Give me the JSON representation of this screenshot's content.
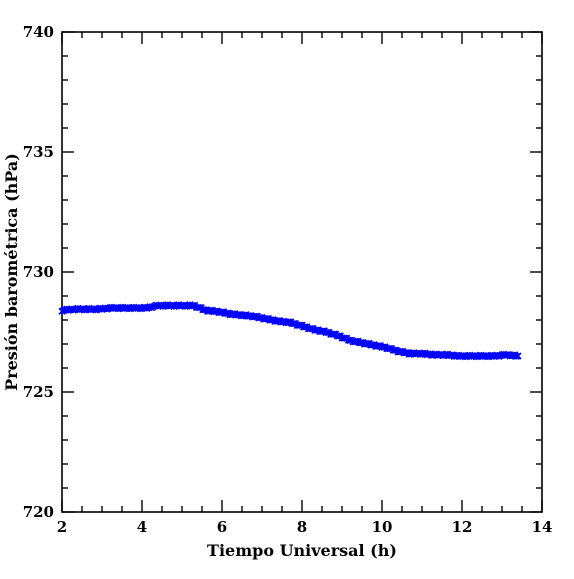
{
  "chart_data": {
    "type": "scatter",
    "title": "",
    "xlabel": "Tiempo Universal (h)",
    "ylabel": "Presión barométrica (hPa)",
    "xlim": [
      2,
      14
    ],
    "ylim": [
      720,
      740
    ],
    "xticks": [
      2,
      4,
      6,
      8,
      10,
      12,
      14
    ],
    "yticks": [
      720,
      725,
      730,
      735,
      740
    ],
    "x_minor_step": 0.5,
    "y_minor_step": 1,
    "grid": false,
    "marker": "cross",
    "colors": {
      "series": "#0000ff",
      "axis": "#000000",
      "background": "#ffffff"
    },
    "series": [
      {
        "x": [
          2.0,
          2.3,
          2.6,
          2.9,
          3.2,
          3.5,
          3.8,
          4.1,
          4.4,
          4.7,
          5.0,
          5.3,
          5.6,
          5.9,
          6.2,
          6.5,
          6.8,
          7.1,
          7.4,
          7.7,
          8.0,
          8.3,
          8.6,
          8.9,
          9.2,
          9.5,
          9.8,
          10.1,
          10.4,
          10.7,
          11.0,
          11.3,
          11.6,
          11.9,
          12.2,
          12.5,
          12.8,
          13.1,
          13.4
        ],
        "y": [
          728.4,
          728.45,
          728.45,
          728.45,
          728.5,
          728.5,
          728.5,
          728.5,
          728.6,
          728.6,
          728.6,
          728.6,
          728.4,
          728.35,
          728.25,
          728.2,
          728.15,
          728.05,
          727.95,
          727.9,
          727.75,
          727.6,
          727.5,
          727.35,
          727.15,
          727.05,
          726.95,
          726.85,
          726.7,
          726.6,
          726.6,
          726.55,
          726.55,
          726.5,
          726.5,
          726.5,
          726.5,
          726.55,
          726.5
        ]
      }
    ]
  }
}
